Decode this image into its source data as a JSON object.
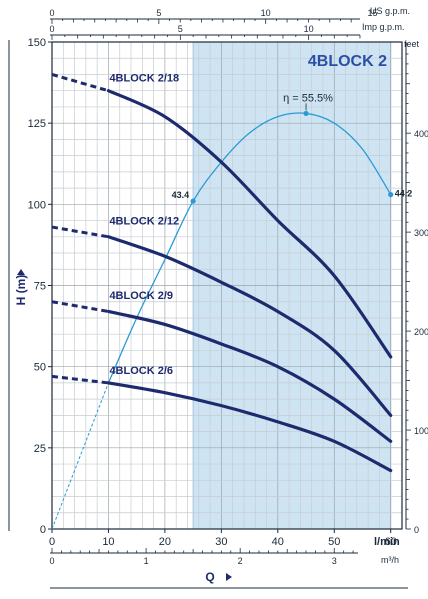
{
  "chart_data": {
    "type": "line",
    "title": "4BLOCK 2",
    "x_axes": {
      "bottom_primary": {
        "unit_label": "l/min",
        "ticks": [
          0,
          10,
          20,
          30,
          40,
          50,
          60
        ],
        "range": [
          0,
          62
        ]
      },
      "bottom_secondary": {
        "unit_label": "m³/h",
        "ticks": [
          0,
          1,
          2,
          3
        ]
      },
      "top_primary": {
        "unit_label": "US g.p.m.",
        "ticks": [
          0,
          5,
          10,
          15
        ]
      },
      "top_secondary": {
        "unit_label": "Imp g.p.m.",
        "ticks": [
          0,
          5,
          10
        ]
      }
    },
    "y_axes": {
      "left": {
        "label": "H (m)",
        "ticks": [
          0,
          25,
          50,
          75,
          100,
          125,
          150
        ],
        "range": [
          0,
          150
        ]
      },
      "right": {
        "unit_label": "feet",
        "ticks": [
          0,
          100,
          200,
          300,
          400
        ]
      }
    },
    "xlabel": "Q",
    "grid": true,
    "highlight_band": {
      "x_range": [
        25,
        60
      ]
    },
    "series": [
      {
        "name": "4BLOCK 2/18",
        "dashed_x": [
          0,
          10
        ],
        "dashed_y": [
          140,
          135
        ],
        "x": [
          10,
          20,
          30,
          40,
          50,
          60
        ],
        "y": [
          135,
          127,
          113,
          95,
          78,
          53
        ]
      },
      {
        "name": "4BLOCK 2/12",
        "dashed_x": [
          0,
          10
        ],
        "dashed_y": [
          93,
          90
        ],
        "x": [
          10,
          20,
          30,
          40,
          50,
          60
        ],
        "y": [
          90,
          84,
          76,
          67,
          55,
          35
        ]
      },
      {
        "name": "4BLOCK 2/9",
        "dashed_x": [
          0,
          10
        ],
        "dashed_y": [
          70,
          67
        ],
        "x": [
          10,
          20,
          30,
          40,
          50,
          60
        ],
        "y": [
          67,
          63,
          57,
          50,
          40,
          27
        ]
      },
      {
        "name": "4BLOCK 2/6",
        "dashed_x": [
          0,
          10
        ],
        "dashed_y": [
          47,
          45
        ],
        "x": [
          10,
          20,
          30,
          40,
          50,
          60
        ],
        "y": [
          45,
          42,
          38,
          33,
          27,
          18
        ]
      }
    ],
    "efficiency": {
      "label": "η = 55.5%",
      "peak_x": 45,
      "peak_y": 128,
      "dashed_x": [
        0,
        10
      ],
      "dashed_y": [
        0,
        45
      ],
      "x": [
        10,
        15,
        20,
        25,
        30,
        35,
        40,
        45,
        50,
        55,
        60
      ],
      "y": [
        45,
        65,
        83,
        101,
        113,
        122,
        127,
        128,
        125,
        117,
        103
      ],
      "markers": [
        {
          "x": 25,
          "y": 101,
          "label": "43.4"
        },
        {
          "x": 60,
          "y": 103,
          "label": "44.2"
        }
      ]
    }
  }
}
